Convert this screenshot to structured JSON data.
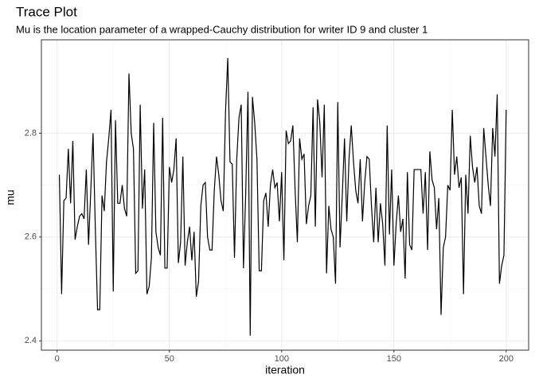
{
  "chart_data": {
    "type": "line",
    "title": "Trace Plot",
    "subtitle": "Mu is the location parameter of a wrapped-Cauchy distribution for writer ID 9 and cluster 1",
    "x_label": "iteration",
    "y_label": "mu",
    "x": [
      1,
      2,
      3,
      4,
      5,
      6,
      7,
      8,
      9,
      10,
      11,
      12,
      13,
      14,
      15,
      16,
      17,
      18,
      19,
      20,
      21,
      22,
      23,
      24,
      25,
      26,
      27,
      28,
      29,
      30,
      31,
      32,
      33,
      34,
      35,
      36,
      37,
      38,
      39,
      40,
      41,
      42,
      43,
      44,
      45,
      46,
      47,
      48,
      49,
      50,
      51,
      52,
      53,
      54,
      55,
      56,
      57,
      58,
      59,
      60,
      61,
      62,
      63,
      64,
      65,
      66,
      67,
      68,
      69,
      70,
      71,
      72,
      73,
      74,
      75,
      76,
      77,
      78,
      79,
      80,
      81,
      82,
      83,
      84,
      85,
      86,
      87,
      88,
      89,
      90,
      91,
      92,
      93,
      94,
      95,
      96,
      97,
      98,
      99,
      100,
      101,
      102,
      103,
      104,
      105,
      106,
      107,
      108,
      109,
      110,
      111,
      112,
      113,
      114,
      115,
      116,
      117,
      118,
      119,
      120,
      121,
      122,
      123,
      124,
      125,
      126,
      127,
      128,
      129,
      130,
      131,
      132,
      133,
      134,
      135,
      136,
      137,
      138,
      139,
      140,
      141,
      142,
      143,
      144,
      145,
      146,
      147,
      148,
      149,
      150,
      151,
      152,
      153,
      154,
      155,
      156,
      157,
      158,
      159,
      160,
      161,
      162,
      163,
      164,
      165,
      166,
      167,
      168,
      169,
      170,
      171,
      172,
      173,
      174,
      175,
      176,
      177,
      178,
      179,
      180,
      181,
      182,
      183,
      184,
      185,
      186,
      187,
      188,
      189,
      190,
      191,
      192,
      193,
      194,
      195,
      196,
      197,
      198,
      199,
      200
    ],
    "values": [
      2.72,
      2.49,
      2.67,
      2.675,
      2.77,
      2.665,
      2.785,
      2.595,
      2.62,
      2.64,
      2.645,
      2.635,
      2.73,
      2.585,
      2.69,
      2.8,
      2.62,
      2.46,
      2.46,
      2.68,
      2.65,
      2.745,
      2.79,
      2.845,
      2.495,
      2.825,
      2.665,
      2.665,
      2.7,
      2.655,
      2.64,
      2.915,
      2.8,
      2.77,
      2.53,
      2.535,
      2.855,
      2.655,
      2.73,
      2.49,
      2.505,
      2.56,
      2.82,
      2.61,
      2.58,
      2.565,
      2.83,
      2.54,
      2.54,
      2.735,
      2.705,
      2.73,
      2.79,
      2.55,
      2.59,
      2.755,
      2.545,
      2.59,
      2.62,
      2.555,
      2.61,
      2.485,
      2.515,
      2.66,
      2.7,
      2.705,
      2.6,
      2.575,
      2.575,
      2.69,
      2.755,
      2.72,
      2.67,
      2.65,
      2.84,
      2.945,
      2.745,
      2.74,
      2.56,
      2.75,
      2.83,
      2.855,
      2.54,
      2.685,
      2.88,
      2.41,
      2.87,
      2.82,
      2.75,
      2.535,
      2.535,
      2.67,
      2.685,
      2.62,
      2.7,
      2.73,
      2.695,
      2.705,
      2.63,
      2.725,
      2.555,
      2.805,
      2.78,
      2.785,
      2.815,
      2.69,
      2.59,
      2.79,
      2.75,
      2.76,
      2.625,
      2.66,
      2.68,
      2.85,
      2.62,
      2.865,
      2.82,
      2.715,
      2.855,
      2.53,
      2.66,
      2.615,
      2.6,
      2.51,
      2.86,
      2.58,
      2.68,
      2.79,
      2.63,
      2.75,
      2.815,
      2.745,
      2.69,
      2.665,
      2.75,
      2.63,
      2.705,
      2.755,
      2.75,
      2.66,
      2.59,
      2.695,
      2.59,
      2.665,
      2.625,
      2.545,
      2.815,
      2.605,
      2.73,
      2.545,
      2.625,
      2.68,
      2.61,
      2.635,
      2.52,
      2.725,
      2.585,
      2.575,
      2.73,
      2.73,
      2.73,
      2.73,
      2.645,
      2.725,
      2.575,
      2.765,
      2.71,
      2.695,
      2.615,
      2.675,
      2.45,
      2.58,
      2.6,
      2.7,
      2.69,
      2.845,
      2.72,
      2.755,
      2.695,
      2.715,
      2.49,
      2.72,
      2.645,
      2.795,
      2.735,
      2.705,
      2.735,
      2.66,
      2.645,
      2.81,
      2.755,
      2.7,
      2.66,
      2.81,
      2.755,
      2.875,
      2.51,
      2.545,
      2.565,
      2.845
    ],
    "color": "#000000",
    "xlim": [
      -7,
      210
    ],
    "ylim": [
      2.382,
      2.98
    ],
    "xticks": [
      0,
      50,
      100,
      150,
      200
    ],
    "yticks": [
      2.4,
      2.6,
      2.8
    ],
    "grid": true
  }
}
